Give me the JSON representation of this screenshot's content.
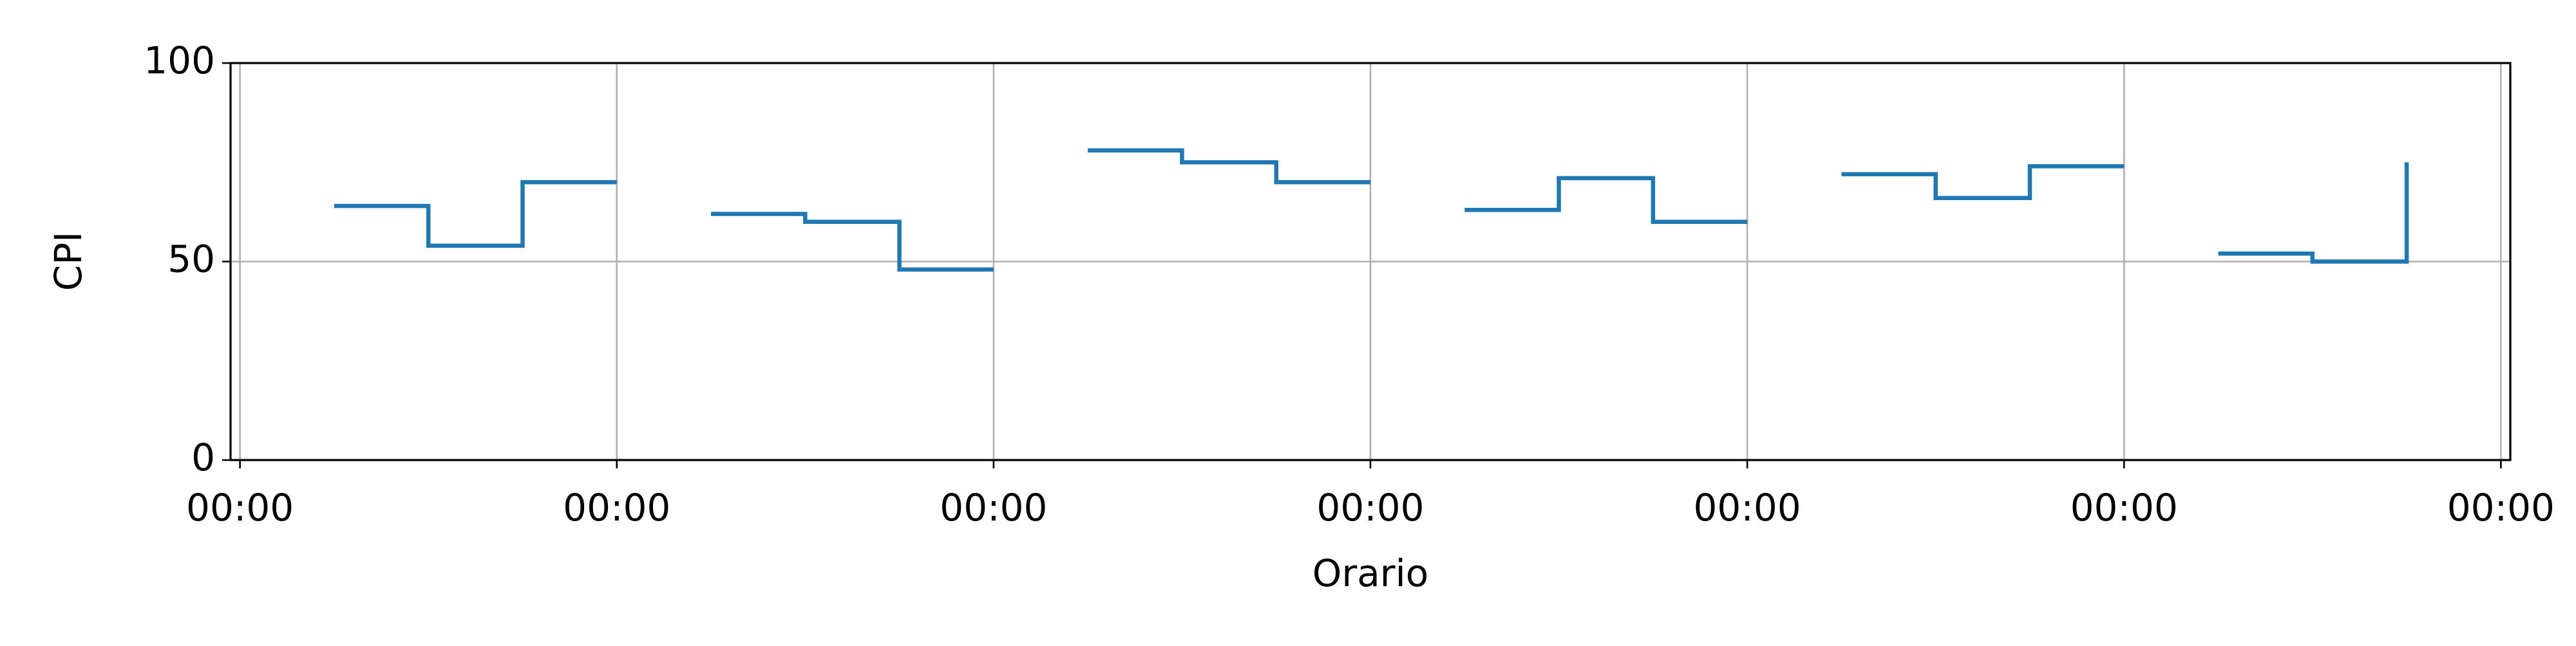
{
  "chart_data": {
    "type": "step",
    "x_label": "Orario",
    "y_label": "CPI",
    "x": [
      6,
      12,
      18,
      24,
      27,
      30,
      36,
      42,
      48,
      51,
      54,
      60,
      66,
      72,
      75,
      78,
      84,
      90,
      96,
      99,
      102,
      108,
      114,
      120,
      123,
      126,
      132,
      138
    ],
    "series": [
      {
        "name": "CPI",
        "color": "#1f77b4",
        "values": [
          64,
          54,
          70,
          70,
          null,
          62,
          60,
          48,
          48,
          null,
          78,
          75,
          70,
          70,
          null,
          63,
          71,
          60,
          60,
          null,
          72,
          66,
          74,
          74,
          null,
          52,
          50,
          75
        ]
      }
    ],
    "xlim": [
      -0.6,
      144.6
    ],
    "xticks": [
      {
        "value": 0,
        "label": "00:00"
      },
      {
        "value": 24,
        "label": "00:00"
      },
      {
        "value": 48,
        "label": "00:00"
      },
      {
        "value": 72,
        "label": "00:00"
      },
      {
        "value": 96,
        "label": "00:00"
      },
      {
        "value": 120,
        "label": "00:00"
      },
      {
        "value": 144,
        "label": "00:00"
      }
    ],
    "ylim": [
      0,
      100
    ],
    "yticks": [
      0,
      50,
      100
    ],
    "grid": true
  }
}
